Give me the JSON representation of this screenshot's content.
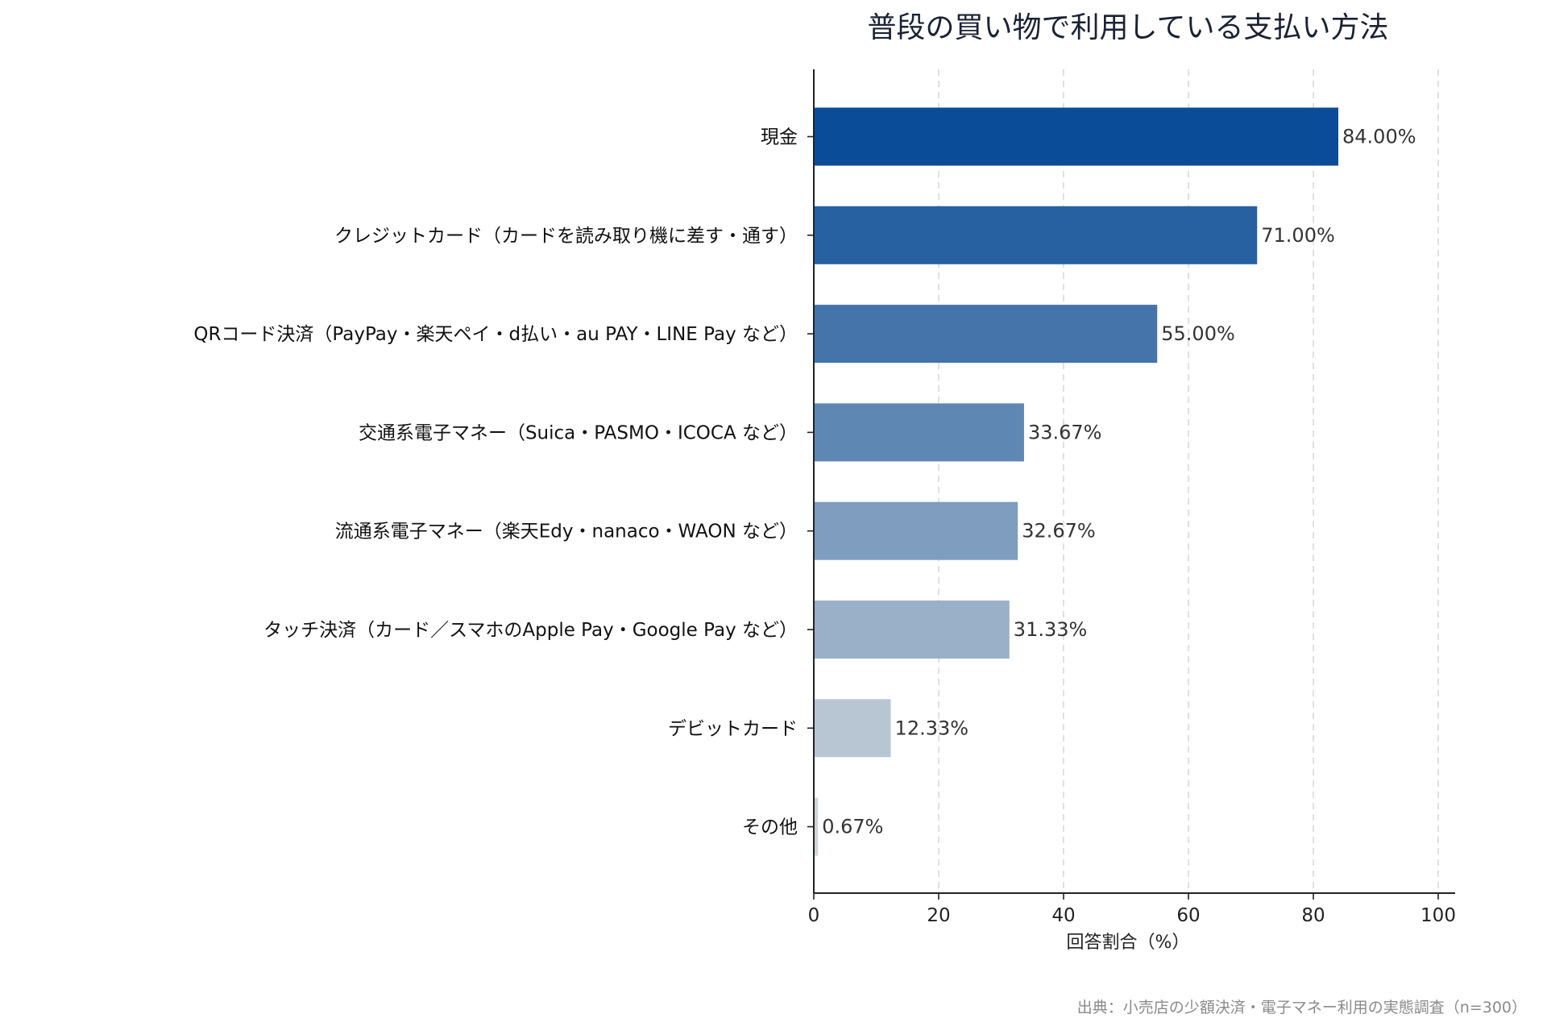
{
  "chart_data": {
    "type": "bar",
    "orientation": "horizontal",
    "title": "普段の買い物で利用している支払い方法",
    "xlabel": "回答割合（%）",
    "ylabel": "",
    "xlim": [
      0,
      100
    ],
    "xticks": [
      0,
      20,
      40,
      60,
      80,
      100
    ],
    "grid": "x-dashed",
    "categories": [
      "現金",
      "クレジットカード（カードを読み取り機に差す・通す）",
      "QRコード決済（PayPay・楽天ペイ・d払い・au PAY・LINE Pay など）",
      "交通系電子マネー（Suica・PASMO・ICOCA など）",
      "流通系電子マネー（楽天Edy・nanaco・WAON など）",
      "タッチ決済（カード／スマホのApple Pay・Google Pay など）",
      "デビットカード",
      "その他"
    ],
    "values": [
      84.0,
      71.0,
      55.0,
      33.67,
      32.67,
      31.33,
      12.33,
      0.67
    ],
    "value_labels": [
      "84.00%",
      "71.00%",
      "55.00%",
      "33.67%",
      "32.67%",
      "31.33%",
      "12.33%",
      "0.67%"
    ],
    "colors": [
      "#0b4c99",
      "#2761a1",
      "#4474aa",
      "#5f87b3",
      "#7f9dbf",
      "#9ab0c8",
      "#b8c6d4",
      "#cfd6dc"
    ],
    "source": "出典：小売店の少額決済・電子マネー利用の実態調査（n=300）"
  }
}
